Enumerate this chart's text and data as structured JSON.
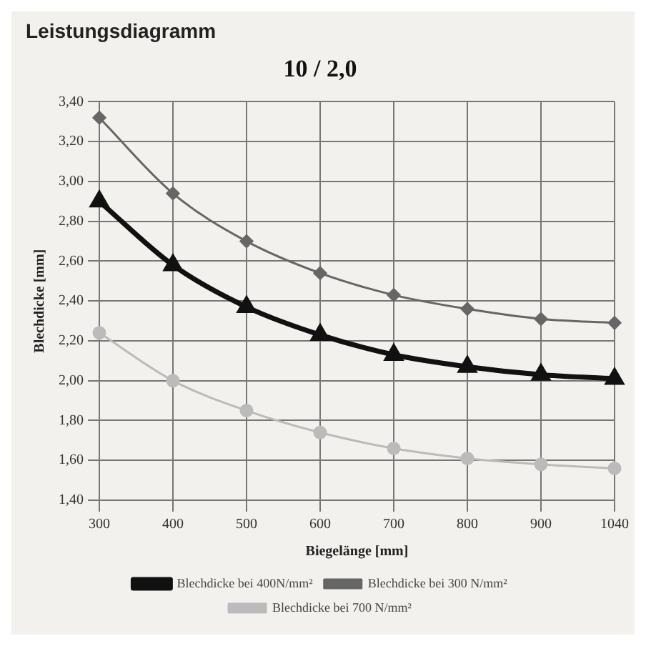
{
  "chart_data": {
    "type": "line",
    "title": "Leistungsdiagramm",
    "subtitle": "10 / 2,0",
    "xlabel": "Biegelänge [mm]",
    "ylabel": "Blechdicke [mm]",
    "categories": [
      "300",
      "400",
      "500",
      "600",
      "700",
      "800",
      "900",
      "1040"
    ],
    "series": [
      {
        "name": "Blechdicke bei 400N/mm²",
        "color": "#111111",
        "marker": "triangle",
        "values": [
          2.9,
          2.58,
          2.37,
          2.23,
          2.13,
          2.07,
          2.03,
          2.01
        ]
      },
      {
        "name": "Blechdicke bei 300 N/mm²",
        "color": "#666666",
        "marker": "diamond",
        "values": [
          3.32,
          2.94,
          2.7,
          2.54,
          2.43,
          2.36,
          2.31,
          2.29
        ]
      },
      {
        "name": "Blechdicke bei 700 N/mm²",
        "color": "#bbbbbb",
        "marker": "circle",
        "values": [
          2.24,
          2.0,
          1.85,
          1.74,
          1.66,
          1.61,
          1.58,
          1.56
        ]
      }
    ],
    "ylim": [
      1.4,
      3.4
    ],
    "yticks": [
      {
        "value": 1.4,
        "label": "1,40"
      },
      {
        "value": 1.6,
        "label": "1,60"
      },
      {
        "value": 1.8,
        "label": "1,80"
      },
      {
        "value": 2.0,
        "label": "2,00"
      },
      {
        "value": 2.2,
        "label": "2,20"
      },
      {
        "value": 2.4,
        "label": "2,40"
      },
      {
        "value": 2.6,
        "label": "2,60"
      },
      {
        "value": 2.8,
        "label": "2,80"
      },
      {
        "value": 3.0,
        "label": "3,00"
      },
      {
        "value": 3.2,
        "label": "3,20"
      },
      {
        "value": 3.4,
        "label": "3,40"
      }
    ],
    "grid": true,
    "legend": "bottom",
    "line_style": "solid"
  }
}
